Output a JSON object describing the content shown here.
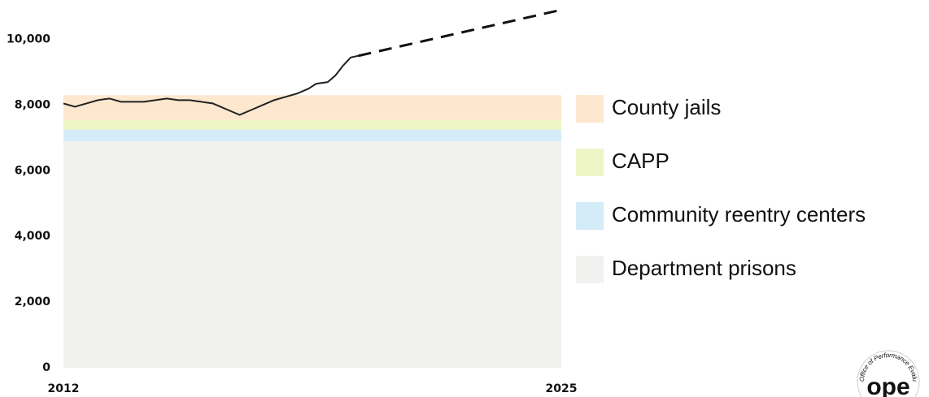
{
  "chart_data": {
    "type": "stacked_area",
    "x": [
      2012,
      2025
    ],
    "xlim": [
      2012,
      2025
    ],
    "xticks": [
      2012,
      2025
    ],
    "ylim": [
      0,
      11200
    ],
    "yticks": [
      0,
      {
        "value": 2000,
        "label": "2,000"
      },
      {
        "value": 4000,
        "label": "4,000"
      },
      {
        "value": 6000,
        "label": "6,000"
      },
      {
        "value": 8000,
        "label": "8,000"
      },
      {
        "value": 10000,
        "label": "10,000"
      }
    ],
    "series": [
      {
        "name": "Department prisons",
        "color": "#f1f1f0",
        "values": [
          6900,
          6900
        ]
      },
      {
        "name": "Community reentry centers",
        "color": "#d3ecf8",
        "values": [
          350,
          350
        ]
      },
      {
        "name": "CAPP",
        "color": "#eef6c8",
        "values": [
          300,
          300
        ]
      },
      {
        "name": "County jails",
        "color": "#fde7cf",
        "values": [
          750,
          750
        ]
      }
    ],
    "lines": [
      {
        "color": "#222222",
        "dashed": false,
        "x": [
          2012.0,
          2012.3,
          2012.6,
          2012.9,
          2013.2,
          2013.5,
          2013.8,
          2014.1,
          2014.4,
          2014.7,
          2015.0,
          2015.3,
          2015.6,
          2015.9,
          2016.1,
          2016.4,
          2016.6,
          2016.9,
          2017.2,
          2017.5,
          2017.8,
          2018.1,
          2018.4,
          2018.6,
          2018.9,
          2019.1,
          2019.3,
          2019.5,
          2019.7
        ],
        "values": [
          8050,
          7950,
          8050,
          8150,
          8200,
          8100,
          8100,
          8100,
          8150,
          8200,
          8150,
          8150,
          8100,
          8050,
          7950,
          7800,
          7700,
          7850,
          8000,
          8150,
          8250,
          8350,
          8500,
          8650,
          8700,
          8900,
          9200,
          9450,
          9500
        ]
      },
      {
        "color": "#111111",
        "dashed": true,
        "x": [
          2019.7,
          2025
        ],
        "values": [
          9500,
          10900
        ]
      }
    ],
    "logo": {
      "text": "ope",
      "caption": "Office of Performance Evaluations"
    }
  }
}
